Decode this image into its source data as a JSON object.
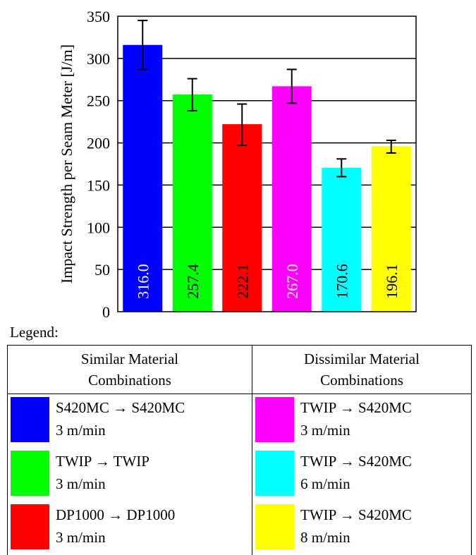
{
  "chart_data": {
    "type": "bar",
    "ylabel": "Impact Strength per Seam Meter  [J/m]",
    "ylim": [
      0,
      350
    ],
    "yticks": [
      0,
      50,
      100,
      150,
      200,
      250,
      300,
      350
    ],
    "grid": true,
    "categories": [
      "S420MC → S420MC 3 m/min",
      "TWIP → TWIP 3 m/min",
      "DP1000 → DP1000 3 m/min",
      "TWIP → S420MC 3 m/min",
      "TWIP → S420MC 6 m/min",
      "TWIP → S420MC 8 m/min"
    ],
    "values": [
      316.0,
      257.4,
      222.1,
      267.0,
      170.6,
      196.1
    ],
    "value_labels": [
      "316.0",
      "257.4",
      "222.1",
      "267.0",
      "170.6",
      "196.1"
    ],
    "error_low": [
      287,
      238,
      197,
      247,
      160,
      188
    ],
    "error_high": [
      345,
      276,
      246,
      287,
      181,
      203
    ],
    "colors": [
      "#0000ff",
      "#00ff00",
      "#ff0000",
      "#ff00ff",
      "#00ffff",
      "#ffff00"
    ],
    "label_colors": [
      "#ffffff",
      "#000000",
      "#000000",
      "#ffffff",
      "#000000",
      "#000000"
    ]
  },
  "legend": {
    "title": "Legend:",
    "groups": [
      {
        "heading_line1": "Similar Material",
        "heading_line2": "Combinations",
        "entries": [
          {
            "line1": "S420MC → S420MC",
            "line2": "3 m/min",
            "color": "#0000ff"
          },
          {
            "line1": "TWIP → TWIP",
            "line2": "3 m/min",
            "color": "#00ff00"
          },
          {
            "line1": "DP1000 → DP1000",
            "line2": "3 m/min",
            "color": "#ff0000"
          }
        ]
      },
      {
        "heading_line1": "Dissimilar Material",
        "heading_line2": "Combinations",
        "entries": [
          {
            "line1": "TWIP → S420MC",
            "line2": "3 m/min",
            "color": "#ff00ff"
          },
          {
            "line1": "TWIP → S420MC",
            "line2": "6 m/min",
            "color": "#00ffff"
          },
          {
            "line1": "TWIP → S420MC",
            "line2": "8 m/min",
            "color": "#ffff00"
          }
        ]
      }
    ]
  }
}
